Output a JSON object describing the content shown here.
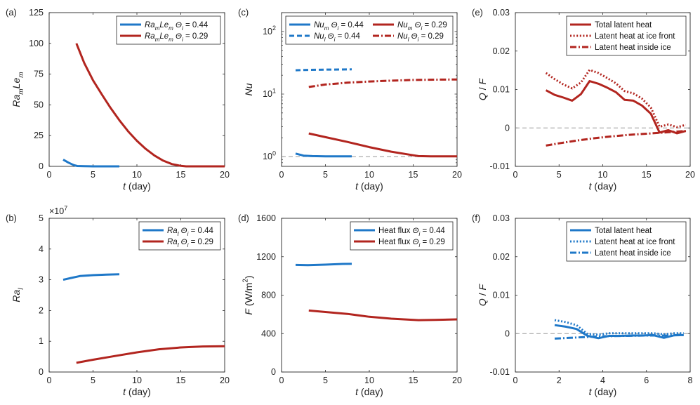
{
  "colors": {
    "blue": "#1f78c8",
    "red": "#b2251f",
    "ref_line": "#999999"
  },
  "chart_data": [
    {
      "id": "a",
      "panel_label": "(a)",
      "type": "line",
      "xlabel": {
        "main": "t",
        "rest": " (day)"
      },
      "ylabel": {
        "base1": "Ra",
        "sub1": "m",
        "base2": "Le",
        "sub2": "m"
      },
      "xlim": [
        0,
        20
      ],
      "ylim": [
        0,
        125
      ],
      "yscale": "linear",
      "xticks": [
        0,
        5,
        10,
        15,
        20
      ],
      "xtick_labels": [
        "0",
        "5",
        "10",
        "15",
        "20"
      ],
      "yticks": [
        0,
        25,
        50,
        75,
        100,
        125
      ],
      "ytick_labels": [
        "0",
        "25",
        "50",
        "75",
        "100",
        "125"
      ],
      "legend": {
        "position": "top-right"
      },
      "series": [
        {
          "name": "Ra_m Le_m Θ_i = 0.44",
          "legend_parts": [
            "Ra",
            "m",
            "Le",
            "m",
            "Θ",
            "i",
            " = 0.44"
          ],
          "color": "blue",
          "style": "solid",
          "x": [
            1.6,
            2.2,
            2.8,
            3.2,
            4,
            5,
            6,
            7,
            8
          ],
          "y": [
            5.5,
            3,
            1,
            0.3,
            0.1,
            0,
            0,
            0,
            0
          ]
        },
        {
          "name": "Ra_m Le_m Θ_i = 0.29",
          "legend_parts": [
            "Ra",
            "m",
            "Le",
            "m",
            "Θ",
            "i",
            " = 0.29"
          ],
          "color": "red",
          "style": "solid",
          "x": [
            3.1,
            4,
            5,
            6,
            7,
            8,
            9,
            10,
            11,
            12,
            13,
            14,
            15,
            15.6,
            16,
            17,
            18,
            19,
            20
          ],
          "y": [
            100,
            84,
            70,
            58.5,
            47.5,
            37.5,
            28.5,
            20.8,
            14.2,
            8.8,
            4.6,
            1.8,
            0.4,
            0,
            0,
            0,
            0,
            0,
            0
          ]
        }
      ]
    },
    {
      "id": "c",
      "panel_label": "(c)",
      "type": "line",
      "xlabel": {
        "main": "t",
        "rest": " (day)"
      },
      "ylabel": {
        "base1": "Nu"
      },
      "xlim": [
        0,
        20
      ],
      "ylim": [
        0.7,
        200
      ],
      "yscale": "log",
      "xticks": [
        0,
        5,
        10,
        15,
        20
      ],
      "xtick_labels": [
        "0",
        "5",
        "10",
        "15",
        "20"
      ],
      "log_ticks": [
        {
          "value": 1,
          "base": "10",
          "exp": "0"
        },
        {
          "value": 10,
          "base": "10",
          "exp": "1"
        },
        {
          "value": 100,
          "base": "10",
          "exp": "2"
        }
      ],
      "reference_line": {
        "y": 1,
        "style": "dashed"
      },
      "legend": {
        "position": "top",
        "columns": 2
      },
      "series": [
        {
          "name": "Nu_m Θ_i = 0.44",
          "legend_parts": [
            "Nu",
            "m",
            "Θ",
            "i",
            " = 0.44"
          ],
          "color": "blue",
          "style": "solid",
          "x": [
            1.6,
            2.5,
            3.5,
            5,
            6.5,
            8
          ],
          "y": [
            1.12,
            1.04,
            1.02,
            1.01,
            1.01,
            1.01
          ]
        },
        {
          "name": "Nu_l Θ_i = 0.44",
          "legend_parts": [
            "Nu",
            "l",
            "Θ",
            "i",
            " = 0.44"
          ],
          "color": "blue",
          "style": "dashed",
          "x": [
            1.6,
            3,
            5,
            8
          ],
          "y": [
            24,
            24.3,
            24.6,
            24.8
          ]
        },
        {
          "name": "Nu_m Θ_i = 0.29",
          "legend_parts": [
            "Nu",
            "m",
            "Θ",
            "i",
            " = 0.29"
          ],
          "color": "red",
          "style": "solid",
          "x": [
            3.1,
            5,
            7.5,
            10,
            12.5,
            14.5,
            15.6,
            17,
            20
          ],
          "y": [
            2.35,
            2.05,
            1.72,
            1.42,
            1.2,
            1.08,
            1.02,
            1.01,
            1.01
          ]
        },
        {
          "name": "Nu_l Θ_i = 0.29",
          "legend_parts": [
            "Nu",
            "l",
            "Θ",
            "i",
            " = 0.29"
          ],
          "color": "red",
          "style": "dashdot",
          "x": [
            3.1,
            5,
            7.5,
            10,
            12.5,
            15,
            17.5,
            20
          ],
          "y": [
            13,
            14.2,
            15.2,
            15.9,
            16.4,
            16.8,
            17,
            17.1
          ]
        }
      ]
    },
    {
      "id": "e",
      "panel_label": "(e)",
      "type": "line",
      "xlabel": {
        "main": "t",
        "rest": " (day)"
      },
      "ylabel": {
        "base1": "Q",
        "rest": " / ",
        "base2": "F"
      },
      "xlim": [
        0,
        20
      ],
      "ylim": [
        -0.01,
        0.03
      ],
      "yscale": "linear",
      "xticks": [
        0,
        5,
        10,
        15,
        20
      ],
      "xtick_labels": [
        "0",
        "5",
        "10",
        "15",
        "20"
      ],
      "yticks": [
        -0.01,
        0,
        0.01,
        0.02,
        0.03
      ],
      "ytick_labels": [
        "-0.01",
        "0",
        "0.01",
        "0.02",
        "0.03"
      ],
      "reference_line": {
        "y": 0,
        "style": "dashed"
      },
      "legend": {
        "position": "top-right"
      },
      "series": [
        {
          "name": "Total latent heat",
          "color": "red",
          "style": "solid",
          "x": [
            3.5,
            4.5,
            5.5,
            6.5,
            7.5,
            8.5,
            9.5,
            10.5,
            11.5,
            12.5,
            13.5,
            14.5,
            15.5,
            16.5,
            17.5,
            18.5,
            19.5
          ],
          "y": [
            0.0098,
            0.0086,
            0.0079,
            0.0071,
            0.0088,
            0.0122,
            0.0115,
            0.0105,
            0.0093,
            0.0073,
            0.0071,
            0.0058,
            0.0037,
            -0.0012,
            -0.0006,
            -0.0014,
            -0.0008
          ]
        },
        {
          "name": "Latent heat at ice front",
          "color": "red",
          "style": "dotted",
          "x": [
            3.5,
            4.5,
            5.5,
            6.5,
            7.5,
            8.5,
            9.5,
            10.5,
            11.5,
            12.5,
            13.5,
            14.5,
            15.5,
            16.5,
            17.5,
            18.5,
            19.5
          ],
          "y": [
            0.0143,
            0.0127,
            0.0113,
            0.0103,
            0.0118,
            0.0151,
            0.0143,
            0.013,
            0.0116,
            0.0096,
            0.009,
            0.0076,
            0.0053,
            0.0003,
            0.0009,
            0.0002,
            0.0008
          ]
        },
        {
          "name": "Latent heat inside ice",
          "color": "red",
          "style": "dashdot",
          "x": [
            3.5,
            5,
            7,
            9,
            11,
            13,
            15,
            17,
            19.5
          ],
          "y": [
            -0.0046,
            -0.004,
            -0.0033,
            -0.0027,
            -0.0022,
            -0.0018,
            -0.0015,
            -0.0012,
            -0.0008
          ]
        }
      ]
    },
    {
      "id": "b",
      "panel_label": "(b)",
      "type": "line",
      "xlabel": {
        "main": "t",
        "rest": " (day)"
      },
      "ylabel": {
        "base1": "Ra",
        "sub1": "l"
      },
      "xlim": [
        0,
        20
      ],
      "ylim": [
        0,
        5
      ],
      "yscale": "linear",
      "y_multiplier": {
        "base": "×10",
        "exp": "7"
      },
      "xticks": [
        0,
        5,
        10,
        15,
        20
      ],
      "xtick_labels": [
        "0",
        "5",
        "10",
        "15",
        "20"
      ],
      "yticks": [
        0,
        1,
        2,
        3,
        4,
        5
      ],
      "ytick_labels": [
        "0",
        "1",
        "2",
        "3",
        "4",
        "5"
      ],
      "legend": {
        "position": "top-right"
      },
      "series": [
        {
          "name": "Ra_l Θ_i = 0.44",
          "legend_parts": [
            "Ra",
            "l",
            "Θ",
            "i",
            " = 0.44"
          ],
          "color": "blue",
          "style": "solid",
          "x": [
            1.6,
            2.5,
            3.5,
            5,
            6.5,
            8
          ],
          "y": [
            3.0,
            3.06,
            3.12,
            3.15,
            3.17,
            3.18
          ]
        },
        {
          "name": "Ra_l Θ_i = 0.29",
          "legend_parts": [
            "Ra",
            "l",
            "Θ",
            "i",
            " = 0.29"
          ],
          "color": "red",
          "style": "solid",
          "x": [
            3.1,
            5,
            7.5,
            10,
            12.5,
            15,
            17.5,
            20
          ],
          "y": [
            0.3,
            0.4,
            0.52,
            0.64,
            0.74,
            0.8,
            0.83,
            0.84
          ]
        }
      ]
    },
    {
      "id": "d",
      "panel_label": "(d)",
      "type": "line",
      "xlabel": {
        "main": "t",
        "rest": " (day)"
      },
      "ylabel": {
        "base1": "F",
        "rest": " (W/m",
        "sup": "2",
        "close": ")"
      },
      "xlim": [
        0,
        20
      ],
      "ylim": [
        0,
        1600
      ],
      "yscale": "linear",
      "xticks": [
        0,
        5,
        10,
        15,
        20
      ],
      "xtick_labels": [
        "0",
        "5",
        "10",
        "15",
        "20"
      ],
      "yticks": [
        0,
        400,
        800,
        1200,
        1600
      ],
      "ytick_labels": [
        "0",
        "400",
        "800",
        "1200",
        "1600"
      ],
      "legend": {
        "position": "top-right"
      },
      "series": [
        {
          "name": "Heat flux Θ_i = 0.44",
          "legend_parts": [
            "Heat flux ",
            "Θ",
            "i",
            " = 0.44"
          ],
          "color": "blue",
          "style": "solid",
          "x": [
            1.6,
            3,
            5,
            7,
            8
          ],
          "y": [
            1115,
            1113,
            1118,
            1125,
            1126
          ]
        },
        {
          "name": "Heat flux Θ_i = 0.29",
          "legend_parts": [
            "Heat flux ",
            "Θ",
            "i",
            " = 0.29"
          ],
          "color": "red",
          "style": "solid",
          "x": [
            3.1,
            5,
            7.5,
            10,
            12.5,
            15.6,
            17.5,
            20
          ],
          "y": [
            640,
            625,
            605,
            575,
            555,
            540,
            542,
            548
          ]
        }
      ]
    },
    {
      "id": "f",
      "panel_label": "(f)",
      "type": "line",
      "xlabel": {
        "main": "t",
        "rest": " (day)"
      },
      "ylabel": {
        "base1": "Q",
        "rest": " / ",
        "base2": "F"
      },
      "xlim": [
        0,
        8
      ],
      "ylim": [
        -0.01,
        0.03
      ],
      "yscale": "linear",
      "xticks": [
        0,
        2,
        4,
        6,
        8
      ],
      "xtick_labels": [
        "0",
        "2",
        "4",
        "6",
        "8"
      ],
      "yticks": [
        -0.01,
        0,
        0.01,
        0.02,
        0.03
      ],
      "ytick_labels": [
        "-0.01",
        "0",
        "0.01",
        "0.02",
        "0.03"
      ],
      "reference_line": {
        "y": 0,
        "style": "dashed"
      },
      "legend": {
        "position": "top-right"
      },
      "series": [
        {
          "name": "Total latent heat",
          "color": "blue",
          "style": "solid",
          "x": [
            1.8,
            2.3,
            2.8,
            3.3,
            3.8,
            4.3,
            4.8,
            5.3,
            5.8,
            6.3,
            6.8,
            7.3,
            7.7
          ],
          "y": [
            0.0022,
            0.0018,
            0.0012,
            -0.0006,
            -0.0012,
            -0.0006,
            -0.0006,
            -0.0005,
            -0.0005,
            -0.0004,
            -0.0011,
            -0.0004,
            -0.0004
          ]
        },
        {
          "name": "Latent heat at ice front",
          "color": "blue",
          "style": "dotted",
          "x": [
            1.8,
            2.3,
            2.8,
            3.3,
            3.8,
            4.3,
            4.8,
            5.3,
            5.8,
            6.3,
            6.8,
            7.3,
            7.7
          ],
          "y": [
            0.0035,
            0.003,
            0.0022,
            -0.0001,
            -0.0003,
            0.0001,
            0.0001,
            0.0001,
            0.0001,
            0.0001,
            -0.0002,
            0.0001,
            0.0001
          ]
        },
        {
          "name": "Latent heat inside ice",
          "color": "blue",
          "style": "dashdot",
          "x": [
            1.8,
            2.5,
            3.2,
            4,
            5,
            6,
            7,
            7.7
          ],
          "y": [
            -0.0013,
            -0.0011,
            -0.0009,
            -0.0007,
            -0.0006,
            -0.0005,
            -0.0005,
            -0.0004
          ]
        }
      ]
    }
  ]
}
